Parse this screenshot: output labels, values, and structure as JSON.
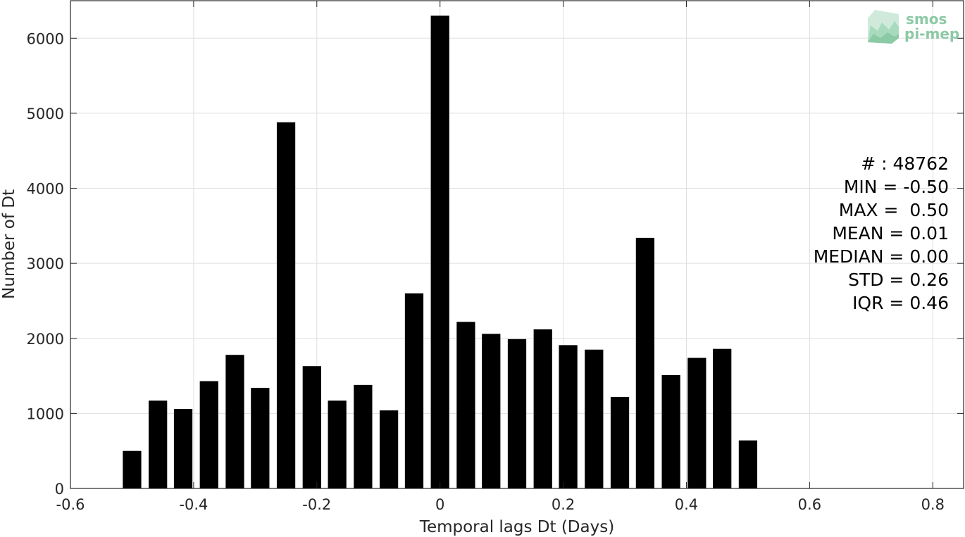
{
  "chart_data": {
    "type": "bar",
    "xlabel": "Temporal lags Dt (Days)",
    "ylabel": "Number of Dt",
    "xlim": [
      -0.6,
      0.85
    ],
    "ylim": [
      0,
      6500
    ],
    "xticks": [
      -0.6,
      -0.4,
      -0.2,
      0,
      0.2,
      0.4,
      0.6,
      0.8
    ],
    "xtick_labels": [
      "-0.6",
      "-0.4",
      "-0.2",
      "0",
      "0.2",
      "0.4",
      "0.6",
      "0.8"
    ],
    "yticks": [
      0,
      1000,
      2000,
      3000,
      4000,
      5000,
      6000
    ],
    "ytick_labels": [
      "0",
      "1000",
      "2000",
      "3000",
      "4000",
      "5000",
      "6000"
    ],
    "grid": true,
    "bar_color": "#000000",
    "bar_width": 0.03,
    "x": [
      -0.5,
      -0.458,
      -0.417,
      -0.375,
      -0.333,
      -0.292,
      -0.25,
      -0.208,
      -0.167,
      -0.125,
      -0.083,
      -0.042,
      0,
      0.042,
      0.083,
      0.125,
      0.167,
      0.208,
      0.25,
      0.292,
      0.333,
      0.375,
      0.417,
      0.458,
      0.5
    ],
    "values": [
      500,
      1170,
      1060,
      1430,
      1780,
      1340,
      4880,
      1630,
      1170,
      1380,
      1040,
      2600,
      6300,
      2220,
      2060,
      1990,
      2120,
      1910,
      1850,
      1220,
      3340,
      1510,
      1740,
      1860,
      640
    ],
    "annotation": [
      "# : 48762",
      "MIN = -0.50",
      "MAX =  0.50",
      "MEAN = 0.01",
      "MEDIAN = 0.00",
      "STD = 0.26",
      "IQR = 0.46"
    ]
  },
  "logo": {
    "line1": "smos",
    "line2": "pi-mep",
    "color": "#8cc9a5"
  }
}
